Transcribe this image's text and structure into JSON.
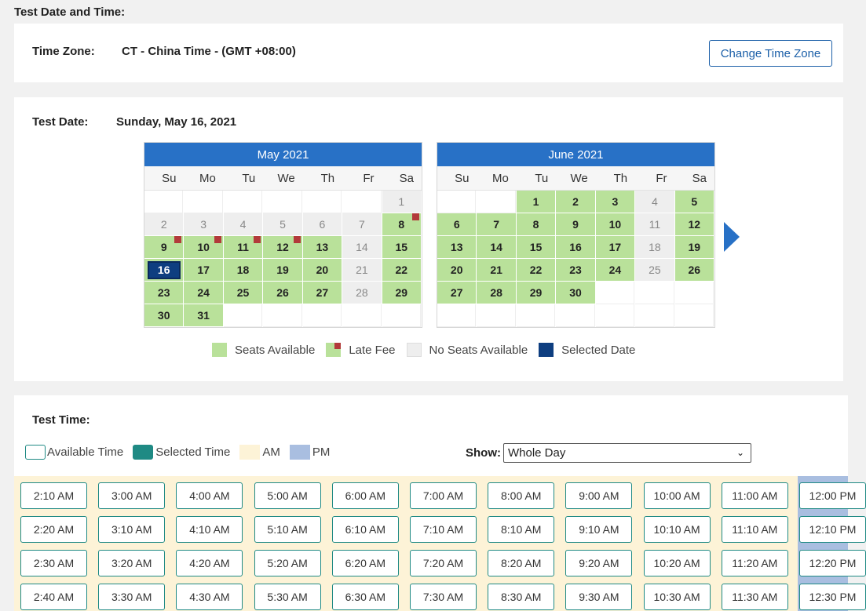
{
  "page": {
    "section_title": "Test Date and Time:"
  },
  "timezone": {
    "label": "Time Zone:",
    "value": "CT - China Time - (GMT +08:00)",
    "change_button": "Change Time Zone"
  },
  "test_date": {
    "label": "Test Date:",
    "value": "Sunday, May 16, 2021"
  },
  "weekdays": [
    "Su",
    "Mo",
    "Tu",
    "We",
    "Th",
    "Fr",
    "Sa"
  ],
  "calendars": [
    {
      "title": "May 2021",
      "cells": [
        {
          "d": "",
          "s": "blank"
        },
        {
          "d": "",
          "s": "blank"
        },
        {
          "d": "",
          "s": "blank"
        },
        {
          "d": "",
          "s": "blank"
        },
        {
          "d": "",
          "s": "blank"
        },
        {
          "d": "",
          "s": "blank"
        },
        {
          "d": "1",
          "s": "noseat"
        },
        {
          "d": "2",
          "s": "noseat"
        },
        {
          "d": "3",
          "s": "noseat"
        },
        {
          "d": "4",
          "s": "noseat"
        },
        {
          "d": "5",
          "s": "noseat"
        },
        {
          "d": "6",
          "s": "noseat"
        },
        {
          "d": "7",
          "s": "noseat"
        },
        {
          "d": "8",
          "s": "fee"
        },
        {
          "d": "9",
          "s": "fee"
        },
        {
          "d": "10",
          "s": "fee"
        },
        {
          "d": "11",
          "s": "fee"
        },
        {
          "d": "12",
          "s": "fee"
        },
        {
          "d": "13",
          "s": "avail"
        },
        {
          "d": "14",
          "s": "noseat"
        },
        {
          "d": "15",
          "s": "avail"
        },
        {
          "d": "16",
          "s": "sel"
        },
        {
          "d": "17",
          "s": "avail"
        },
        {
          "d": "18",
          "s": "avail"
        },
        {
          "d": "19",
          "s": "avail"
        },
        {
          "d": "20",
          "s": "avail"
        },
        {
          "d": "21",
          "s": "noseat"
        },
        {
          "d": "22",
          "s": "avail"
        },
        {
          "d": "23",
          "s": "avail"
        },
        {
          "d": "24",
          "s": "avail"
        },
        {
          "d": "25",
          "s": "avail"
        },
        {
          "d": "26",
          "s": "avail"
        },
        {
          "d": "27",
          "s": "avail"
        },
        {
          "d": "28",
          "s": "noseat"
        },
        {
          "d": "29",
          "s": "avail"
        },
        {
          "d": "30",
          "s": "avail"
        },
        {
          "d": "31",
          "s": "avail"
        },
        {
          "d": "",
          "s": "blank"
        },
        {
          "d": "",
          "s": "blank"
        },
        {
          "d": "",
          "s": "blank"
        },
        {
          "d": "",
          "s": "blank"
        },
        {
          "d": "",
          "s": "blank"
        }
      ]
    },
    {
      "title": "June 2021",
      "cells": [
        {
          "d": "",
          "s": "blank"
        },
        {
          "d": "",
          "s": "blank"
        },
        {
          "d": "1",
          "s": "avail"
        },
        {
          "d": "2",
          "s": "avail"
        },
        {
          "d": "3",
          "s": "avail"
        },
        {
          "d": "4",
          "s": "noseat"
        },
        {
          "d": "5",
          "s": "avail"
        },
        {
          "d": "6",
          "s": "avail"
        },
        {
          "d": "7",
          "s": "avail"
        },
        {
          "d": "8",
          "s": "avail"
        },
        {
          "d": "9",
          "s": "avail"
        },
        {
          "d": "10",
          "s": "avail"
        },
        {
          "d": "11",
          "s": "noseat"
        },
        {
          "d": "12",
          "s": "avail"
        },
        {
          "d": "13",
          "s": "avail"
        },
        {
          "d": "14",
          "s": "avail"
        },
        {
          "d": "15",
          "s": "avail"
        },
        {
          "d": "16",
          "s": "avail"
        },
        {
          "d": "17",
          "s": "avail"
        },
        {
          "d": "18",
          "s": "noseat"
        },
        {
          "d": "19",
          "s": "avail"
        },
        {
          "d": "20",
          "s": "avail"
        },
        {
          "d": "21",
          "s": "avail"
        },
        {
          "d": "22",
          "s": "avail"
        },
        {
          "d": "23",
          "s": "avail"
        },
        {
          "d": "24",
          "s": "avail"
        },
        {
          "d": "25",
          "s": "noseat"
        },
        {
          "d": "26",
          "s": "avail"
        },
        {
          "d": "27",
          "s": "avail"
        },
        {
          "d": "28",
          "s": "avail"
        },
        {
          "d": "29",
          "s": "avail"
        },
        {
          "d": "30",
          "s": "avail"
        },
        {
          "d": "",
          "s": "blank"
        },
        {
          "d": "",
          "s": "blank"
        },
        {
          "d": "",
          "s": "blank"
        },
        {
          "d": "",
          "s": "blank"
        },
        {
          "d": "",
          "s": "blank"
        },
        {
          "d": "",
          "s": "blank"
        },
        {
          "d": "",
          "s": "blank"
        },
        {
          "d": "",
          "s": "blank"
        },
        {
          "d": "",
          "s": "blank"
        },
        {
          "d": "",
          "s": "blank"
        }
      ]
    }
  ],
  "date_legend": {
    "seats_available": "Seats Available",
    "late_fee": "Late Fee",
    "no_seats": "No Seats Available",
    "selected": "Selected Date"
  },
  "test_time": {
    "label": "Test Time:",
    "legend": {
      "available": "Available Time",
      "selected": "Selected Time",
      "am": "AM",
      "pm": "PM"
    },
    "show_label": "Show:",
    "show_value": "Whole Day",
    "columns": [
      [
        "2:10 AM",
        "2:20 AM",
        "2:30 AM",
        "2:40 AM"
      ],
      [
        "3:00 AM",
        "3:10 AM",
        "3:20 AM",
        "3:30 AM"
      ],
      [
        "4:00 AM",
        "4:10 AM",
        "4:20 AM",
        "4:30 AM"
      ],
      [
        "5:00 AM",
        "5:10 AM",
        "5:20 AM",
        "5:30 AM"
      ],
      [
        "6:00 AM",
        "6:10 AM",
        "6:20 AM",
        "6:30 AM"
      ],
      [
        "7:00 AM",
        "7:10 AM",
        "7:20 AM",
        "7:30 AM"
      ],
      [
        "8:00 AM",
        "8:10 AM",
        "8:20 AM",
        "8:30 AM"
      ],
      [
        "9:00 AM",
        "9:10 AM",
        "9:20 AM",
        "9:30 AM"
      ],
      [
        "10:00 AM",
        "10:10 AM",
        "10:20 AM",
        "10:30 AM"
      ],
      [
        "11:00 AM",
        "11:10 AM",
        "11:20 AM",
        "11:30 AM"
      ],
      [
        "12:00 PM",
        "12:10 PM",
        "12:20 PM",
        "12:30 PM"
      ]
    ]
  },
  "colors": {
    "accent_blue": "#2871c6",
    "seats_green": "#b9e19a",
    "late_fee_red": "#b23a3a",
    "no_seats_gray": "#eeeeee",
    "selected_navy": "#0e3e80",
    "time_teal": "#1f8a84",
    "am_cream": "#fdf3d7",
    "pm_blue": "#a9bee0"
  }
}
